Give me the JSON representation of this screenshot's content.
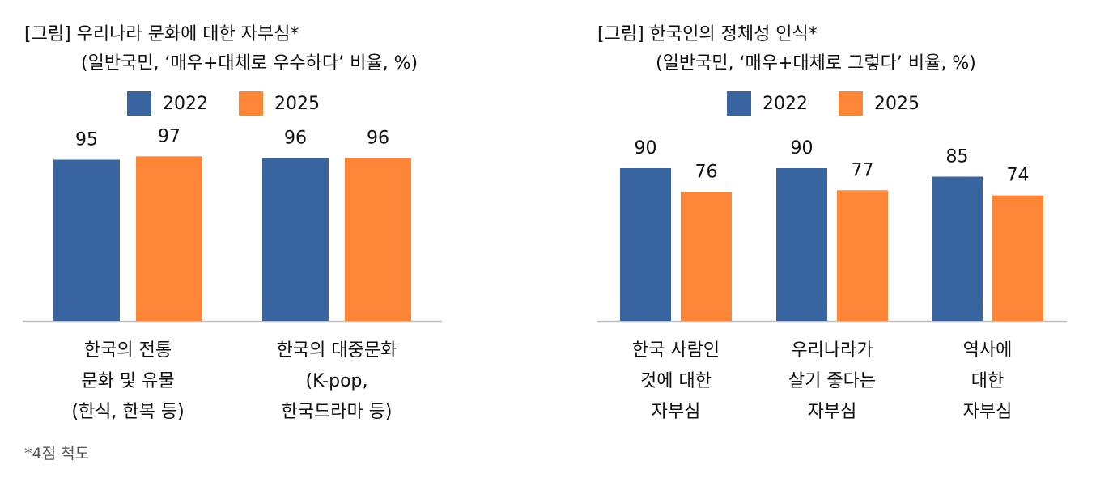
{
  "colors": {
    "series_2022": "#3864a0",
    "series_2025": "#fd8537",
    "axis": "#bfbfbf"
  },
  "chart_data": [
    {
      "type": "bar",
      "title_line1": "[그림] 우리나라 문화에 대한 자부심*",
      "title_line2": "(일반국민, ‘매우+대체로 우수하다’ 비율, %)",
      "legend_position": "top",
      "categories": [
        [
          "한국의 전통",
          "문화 및 유물",
          "(한식, 한복 등)"
        ],
        [
          "한국의 대중문화",
          "(K-pop,",
          "한국드라마 등)"
        ]
      ],
      "series": [
        {
          "name": "2022",
          "values": [
            95,
            96
          ]
        },
        {
          "name": "2025",
          "values": [
            97,
            96
          ]
        }
      ],
      "ylim": [
        0,
        100
      ],
      "grid": false
    },
    {
      "type": "bar",
      "title_line1": "[그림] 한국인의 정체성 인식*",
      "title_line2": "(일반국민, ‘매우+대체로 그렇다’ 비율, %)",
      "legend_position": "top",
      "categories": [
        [
          "한국 사람인",
          "것에 대한",
          "자부심"
        ],
        [
          "우리나라가",
          "살기 좋다는",
          "자부심"
        ],
        [
          "역사에",
          "대한",
          "자부심"
        ]
      ],
      "series": [
        {
          "name": "2022",
          "values": [
            90,
            90,
            85
          ]
        },
        {
          "name": "2025",
          "values": [
            76,
            77,
            74
          ]
        }
      ],
      "ylim": [
        0,
        100
      ],
      "grid": false
    }
  ],
  "footnote": "*4점 척도"
}
